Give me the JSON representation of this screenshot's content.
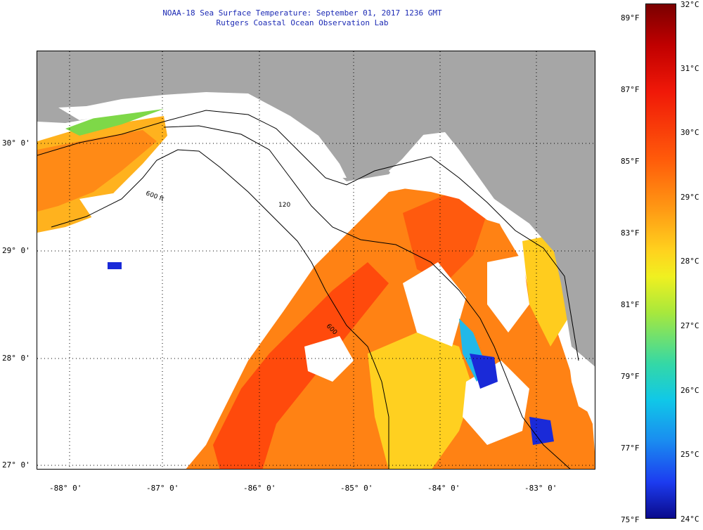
{
  "header": {
    "title": "NOAA-18 Sea Surface Temperature:  September 01, 2017 1236 GMT",
    "subtitle": "Rutgers Coastal Ocean Observation Lab"
  },
  "map": {
    "latitude_labels": [
      "30° 0'",
      "29° 0'",
      "28° 0'",
      "27° 0'"
    ],
    "longitude_labels": [
      "-88° 0'",
      "-87° 0'",
      "-86° 0'",
      "-85° 0'",
      "-84° 0'",
      "-83° 0'"
    ],
    "contour_labels": [
      "600 ft",
      "120",
      "600"
    ],
    "colors": {
      "land": "#a6a6a6",
      "no_data": "#ffffff",
      "warm": "#ff6a10",
      "hot": "#ff3c0a",
      "mild": "#ffc01e",
      "cool": "#1cc8e0",
      "cold": "#1a2ad8"
    }
  },
  "colorbar": {
    "fahrenheit_labels": [
      "89°F",
      "87°F",
      "85°F",
      "83°F",
      "81°F",
      "79°F",
      "77°F",
      "75°F"
    ],
    "celsius_labels": [
      "32°C",
      "31°C",
      "30°C",
      "29°C",
      "28°C",
      "27°C",
      "26°C",
      "25°C",
      "24°C"
    ]
  }
}
